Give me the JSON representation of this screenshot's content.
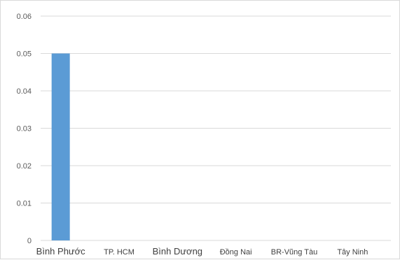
{
  "chart_data": {
    "type": "bar",
    "categories": [
      "Bình Phước",
      "TP. HCM",
      "Bình Dương",
      "Đồng Nai",
      "BR-Vũng Tàu",
      "Tây Ninh"
    ],
    "series": [
      {
        "values": [
          0.05,
          0,
          0,
          0,
          0,
          0
        ]
      }
    ],
    "y_ticks": [
      "0",
      "0.01",
      "0.02",
      "0.03",
      "0.04",
      "0.05",
      "0.06"
    ],
    "ylim": [
      0,
      0.06
    ],
    "grid": true,
    "legend": "none",
    "bar_color": "#5b9bd5",
    "gridline_color": "#d9d9d9"
  }
}
